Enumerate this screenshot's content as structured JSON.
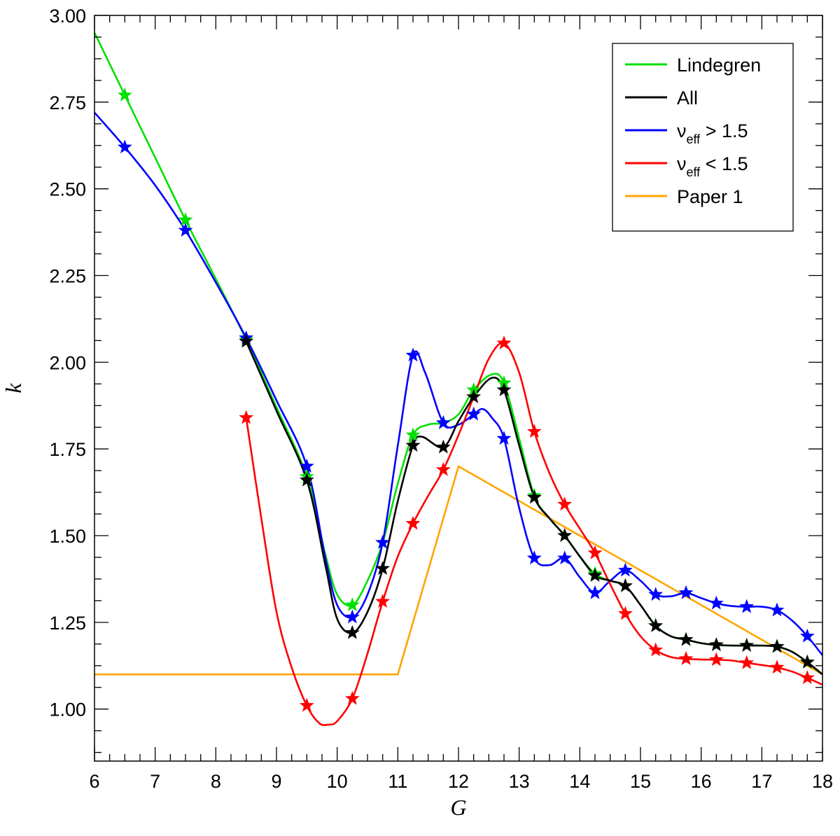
{
  "chart_data": {
    "type": "line",
    "title": "",
    "xlabel": "G",
    "ylabel": "k",
    "xlim": [
      6,
      18
    ],
    "ylim": [
      0.85,
      3.0
    ],
    "x_ticks": [
      {
        "value": 6,
        "label": "6"
      },
      {
        "value": 7,
        "label": "7"
      },
      {
        "value": 8,
        "label": "8"
      },
      {
        "value": 9,
        "label": "9"
      },
      {
        "value": 10,
        "label": "10"
      },
      {
        "value": 11,
        "label": "11"
      },
      {
        "value": 12,
        "label": "12"
      },
      {
        "value": 13,
        "label": "13"
      },
      {
        "value": 14,
        "label": "14"
      },
      {
        "value": 15,
        "label": "15"
      },
      {
        "value": 16,
        "label": "16"
      },
      {
        "value": 17,
        "label": "17"
      },
      {
        "value": 18,
        "label": "18"
      }
    ],
    "y_ticks": [
      {
        "value": 1.0,
        "label": "1.00"
      },
      {
        "value": 1.25,
        "label": "1.25"
      },
      {
        "value": 1.5,
        "label": "1.50"
      },
      {
        "value": 1.75,
        "label": "1.75"
      },
      {
        "value": 2.0,
        "label": "2.00"
      },
      {
        "value": 2.25,
        "label": "2.25"
      },
      {
        "value": 2.5,
        "label": "2.50"
      },
      {
        "value": 2.75,
        "label": "2.75"
      },
      {
        "value": 3.0,
        "label": "3.00"
      }
    ],
    "grid": false,
    "legend_position": "top-right",
    "series": [
      {
        "name": "Lindegren",
        "name_sub": "",
        "name_suffix": "",
        "color": "#00e000",
        "curve": [
          [
            6.0,
            2.95
          ],
          [
            6.5,
            2.77
          ],
          [
            7.0,
            2.59
          ],
          [
            7.5,
            2.41
          ],
          [
            8.0,
            2.24
          ],
          [
            8.5,
            2.065
          ],
          [
            9.0,
            1.87
          ],
          [
            9.5,
            1.67
          ],
          [
            9.8,
            1.45
          ],
          [
            10.0,
            1.33
          ],
          [
            10.25,
            1.3
          ],
          [
            10.5,
            1.37
          ],
          [
            10.75,
            1.48
          ],
          [
            11.0,
            1.65
          ],
          [
            11.25,
            1.79
          ],
          [
            11.5,
            1.82
          ],
          [
            11.75,
            1.825
          ],
          [
            12.0,
            1.85
          ],
          [
            12.25,
            1.92
          ],
          [
            12.55,
            1.965
          ],
          [
            12.75,
            1.94
          ],
          [
            13.0,
            1.78
          ],
          [
            13.25,
            1.615
          ],
          [
            13.5,
            1.55
          ],
          [
            13.75,
            1.5
          ],
          [
            14.0,
            1.44
          ],
          [
            14.25,
            1.39
          ],
          [
            14.5,
            1.37
          ],
          [
            14.75,
            1.355
          ],
          [
            15.0,
            1.3
          ],
          [
            15.25,
            1.24
          ],
          [
            15.5,
            1.21
          ],
          [
            15.75,
            1.2
          ],
          [
            16.0,
            1.19
          ],
          [
            16.25,
            1.185
          ],
          [
            16.5,
            1.183
          ],
          [
            16.75,
            1.183
          ],
          [
            17.0,
            1.183
          ],
          [
            17.25,
            1.18
          ],
          [
            17.5,
            1.165
          ],
          [
            17.75,
            1.135
          ],
          [
            18.0,
            1.1
          ]
        ],
        "markers": [
          [
            6.5,
            2.77
          ],
          [
            7.5,
            2.41
          ],
          [
            8.5,
            2.065
          ],
          [
            9.5,
            1.67
          ],
          [
            10.25,
            1.3
          ],
          [
            10.75,
            1.48
          ],
          [
            11.25,
            1.79
          ],
          [
            11.75,
            1.825
          ],
          [
            12.25,
            1.92
          ],
          [
            12.75,
            1.94
          ],
          [
            13.25,
            1.615
          ],
          [
            13.75,
            1.5
          ],
          [
            14.25,
            1.39
          ],
          [
            14.75,
            1.355
          ],
          [
            15.25,
            1.24
          ],
          [
            15.75,
            1.2
          ],
          [
            16.25,
            1.185
          ],
          [
            16.75,
            1.183
          ],
          [
            17.25,
            1.18
          ],
          [
            17.75,
            1.135
          ]
        ]
      },
      {
        "name": "All",
        "name_sub": "",
        "name_suffix": "",
        "color": "#000000",
        "curve": [
          [
            8.5,
            2.06
          ],
          [
            9.0,
            1.86
          ],
          [
            9.5,
            1.66
          ],
          [
            9.8,
            1.42
          ],
          [
            10.0,
            1.26
          ],
          [
            10.25,
            1.22
          ],
          [
            10.5,
            1.28
          ],
          [
            10.75,
            1.405
          ],
          [
            11.0,
            1.6
          ],
          [
            11.25,
            1.76
          ],
          [
            11.4,
            1.785
          ],
          [
            11.75,
            1.755
          ],
          [
            12.0,
            1.83
          ],
          [
            12.25,
            1.9
          ],
          [
            12.55,
            1.955
          ],
          [
            12.75,
            1.92
          ],
          [
            13.0,
            1.76
          ],
          [
            13.25,
            1.61
          ],
          [
            13.5,
            1.55
          ],
          [
            13.75,
            1.5
          ],
          [
            14.0,
            1.44
          ],
          [
            14.25,
            1.385
          ],
          [
            14.5,
            1.37
          ],
          [
            14.75,
            1.355
          ],
          [
            15.0,
            1.3
          ],
          [
            15.25,
            1.24
          ],
          [
            15.5,
            1.21
          ],
          [
            15.75,
            1.2
          ],
          [
            16.0,
            1.19
          ],
          [
            16.25,
            1.185
          ],
          [
            16.5,
            1.183
          ],
          [
            16.75,
            1.183
          ],
          [
            17.0,
            1.183
          ],
          [
            17.25,
            1.18
          ],
          [
            17.5,
            1.165
          ],
          [
            17.75,
            1.135
          ],
          [
            18.0,
            1.1
          ]
        ],
        "markers": [
          [
            8.5,
            2.06
          ],
          [
            9.5,
            1.66
          ],
          [
            10.25,
            1.22
          ],
          [
            10.75,
            1.405
          ],
          [
            11.25,
            1.76
          ],
          [
            11.75,
            1.755
          ],
          [
            12.25,
            1.9
          ],
          [
            12.75,
            1.92
          ],
          [
            13.25,
            1.61
          ],
          [
            13.75,
            1.5
          ],
          [
            14.25,
            1.385
          ],
          [
            14.75,
            1.355
          ],
          [
            15.25,
            1.24
          ],
          [
            15.75,
            1.2
          ],
          [
            16.25,
            1.185
          ],
          [
            16.75,
            1.183
          ],
          [
            17.25,
            1.18
          ],
          [
            17.75,
            1.135
          ]
        ]
      },
      {
        "name": "ν",
        "name_sub": "eff",
        "name_suffix": " > 1.5",
        "color": "#0000ff",
        "curve": [
          [
            6.0,
            2.72
          ],
          [
            6.5,
            2.62
          ],
          [
            7.0,
            2.51
          ],
          [
            7.5,
            2.38
          ],
          [
            8.0,
            2.23
          ],
          [
            8.5,
            2.07
          ],
          [
            9.0,
            1.89
          ],
          [
            9.5,
            1.7
          ],
          [
            9.8,
            1.44
          ],
          [
            10.0,
            1.3
          ],
          [
            10.25,
            1.265
          ],
          [
            10.5,
            1.33
          ],
          [
            10.75,
            1.48
          ],
          [
            11.0,
            1.76
          ],
          [
            11.25,
            2.02
          ],
          [
            11.45,
            1.97
          ],
          [
            11.75,
            1.825
          ],
          [
            12.0,
            1.82
          ],
          [
            12.25,
            1.85
          ],
          [
            12.4,
            1.865
          ],
          [
            12.55,
            1.84
          ],
          [
            12.75,
            1.78
          ],
          [
            13.0,
            1.58
          ],
          [
            13.25,
            1.435
          ],
          [
            13.5,
            1.415
          ],
          [
            13.75,
            1.435
          ],
          [
            14.0,
            1.38
          ],
          [
            14.25,
            1.335
          ],
          [
            14.5,
            1.37
          ],
          [
            14.75,
            1.4
          ],
          [
            15.0,
            1.37
          ],
          [
            15.25,
            1.33
          ],
          [
            15.5,
            1.325
          ],
          [
            15.75,
            1.335
          ],
          [
            16.0,
            1.32
          ],
          [
            16.25,
            1.305
          ],
          [
            16.5,
            1.297
          ],
          [
            16.75,
            1.295
          ],
          [
            17.0,
            1.295
          ],
          [
            17.25,
            1.285
          ],
          [
            17.5,
            1.255
          ],
          [
            17.75,
            1.21
          ],
          [
            18.0,
            1.155
          ]
        ],
        "markers": [
          [
            6.5,
            2.62
          ],
          [
            7.5,
            2.38
          ],
          [
            8.5,
            2.07
          ],
          [
            9.5,
            1.7
          ],
          [
            10.25,
            1.265
          ],
          [
            10.75,
            1.48
          ],
          [
            11.25,
            2.02
          ],
          [
            11.75,
            1.825
          ],
          [
            12.25,
            1.85
          ],
          [
            12.75,
            1.78
          ],
          [
            13.25,
            1.435
          ],
          [
            13.75,
            1.435
          ],
          [
            14.25,
            1.335
          ],
          [
            14.75,
            1.4
          ],
          [
            15.25,
            1.33
          ],
          [
            15.75,
            1.335
          ],
          [
            16.25,
            1.305
          ],
          [
            16.75,
            1.295
          ],
          [
            17.25,
            1.285
          ],
          [
            17.75,
            1.21
          ]
        ]
      },
      {
        "name": "ν",
        "name_sub": "eff",
        "name_suffix": " < 1.5",
        "color": "#ff0000",
        "curve": [
          [
            8.5,
            1.84
          ],
          [
            8.75,
            1.55
          ],
          [
            9.0,
            1.28
          ],
          [
            9.25,
            1.12
          ],
          [
            9.5,
            1.01
          ],
          [
            9.7,
            0.96
          ],
          [
            9.85,
            0.955
          ],
          [
            10.0,
            0.965
          ],
          [
            10.25,
            1.03
          ],
          [
            10.5,
            1.16
          ],
          [
            10.75,
            1.31
          ],
          [
            11.0,
            1.44
          ],
          [
            11.25,
            1.535
          ],
          [
            11.5,
            1.615
          ],
          [
            11.75,
            1.69
          ],
          [
            12.0,
            1.79
          ],
          [
            12.25,
            1.9
          ],
          [
            12.5,
            2.01
          ],
          [
            12.75,
            2.055
          ],
          [
            13.0,
            1.97
          ],
          [
            13.25,
            1.8
          ],
          [
            13.5,
            1.68
          ],
          [
            13.75,
            1.59
          ],
          [
            14.0,
            1.52
          ],
          [
            14.25,
            1.45
          ],
          [
            14.5,
            1.36
          ],
          [
            14.75,
            1.275
          ],
          [
            15.0,
            1.21
          ],
          [
            15.25,
            1.17
          ],
          [
            15.5,
            1.15
          ],
          [
            15.75,
            1.145
          ],
          [
            16.0,
            1.143
          ],
          [
            16.25,
            1.142
          ],
          [
            16.5,
            1.14
          ],
          [
            16.75,
            1.133
          ],
          [
            17.0,
            1.127
          ],
          [
            17.25,
            1.12
          ],
          [
            17.5,
            1.108
          ],
          [
            17.75,
            1.09
          ],
          [
            18.0,
            1.07
          ]
        ],
        "markers": [
          [
            8.5,
            1.84
          ],
          [
            9.5,
            1.01
          ],
          [
            10.25,
            1.03
          ],
          [
            10.75,
            1.31
          ],
          [
            11.25,
            1.535
          ],
          [
            11.75,
            1.69
          ],
          [
            12.25,
            1.9
          ],
          [
            12.75,
            2.055
          ],
          [
            13.25,
            1.8
          ],
          [
            13.75,
            1.59
          ],
          [
            14.25,
            1.45
          ],
          [
            14.75,
            1.275
          ],
          [
            15.25,
            1.17
          ],
          [
            15.75,
            1.145
          ],
          [
            16.25,
            1.142
          ],
          [
            16.75,
            1.133
          ],
          [
            17.25,
            1.12
          ],
          [
            17.75,
            1.09
          ]
        ]
      },
      {
        "name": "Paper 1",
        "name_sub": "",
        "name_suffix": "",
        "color": "#ffa500",
        "curve": [
          [
            6.0,
            1.1
          ],
          [
            11.0,
            1.1
          ],
          [
            12.0,
            1.7
          ],
          [
            18.0,
            1.1
          ]
        ],
        "markers": []
      }
    ]
  }
}
